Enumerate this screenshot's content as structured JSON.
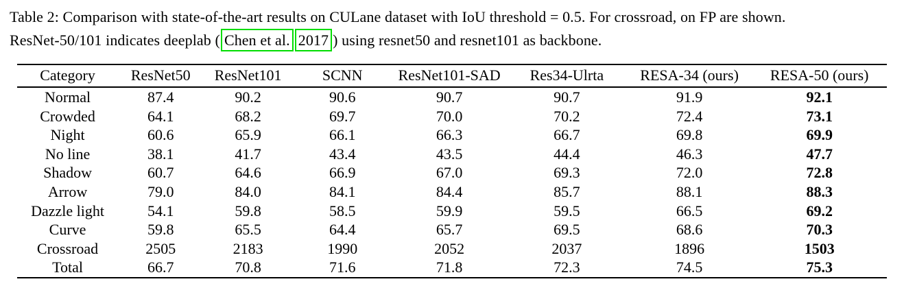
{
  "caption": {
    "line1": "Table 2: Comparison with state-of-the-art results on CULane dataset with IoU threshold = 0.5. For crossroad, on FP are shown.",
    "line2_prefix": "ResNet-50/101 indicates deeplab (",
    "cite_authors": "Chen et al.",
    "cite_year": "2017",
    "line2_suffix": ") using resnet50 and resnet101 as backbone.",
    "citation_box_color": "#00dd00"
  },
  "table": {
    "columns": [
      "Category",
      "ResNet50",
      "ResNet101",
      "SCNN",
      "ResNet101-SAD",
      "Res34-Ulrta",
      "RESA-34 (ours)",
      "RESA-50 (ours)"
    ],
    "rows": [
      [
        "Normal",
        "87.4",
        "90.2",
        "90.6",
        "90.7",
        "90.7",
        "91.9",
        "92.1"
      ],
      [
        "Crowded",
        "64.1",
        "68.2",
        "69.7",
        "70.0",
        "70.2",
        "72.4",
        "73.1"
      ],
      [
        "Night",
        "60.6",
        "65.9",
        "66.1",
        "66.3",
        "66.7",
        "69.8",
        "69.9"
      ],
      [
        "No line",
        "38.1",
        "41.7",
        "43.4",
        "43.5",
        "44.4",
        "46.3",
        "47.7"
      ],
      [
        "Shadow",
        "60.7",
        "64.6",
        "66.9",
        "67.0",
        "69.3",
        "72.0",
        "72.8"
      ],
      [
        "Arrow",
        "79.0",
        "84.0",
        "84.1",
        "84.4",
        "85.7",
        "88.1",
        "88.3"
      ],
      [
        "Dazzle light",
        "54.1",
        "59.8",
        "58.5",
        "59.9",
        "59.5",
        "66.5",
        "69.2"
      ],
      [
        "Curve",
        "59.8",
        "65.5",
        "64.4",
        "65.7",
        "69.5",
        "68.6",
        "70.3"
      ],
      [
        "Crossroad",
        "2505",
        "2183",
        "1990",
        "2052",
        "2037",
        "1896",
        "1503"
      ],
      [
        "Total",
        "66.7",
        "70.8",
        "71.6",
        "71.8",
        "72.3",
        "74.5",
        "75.3"
      ]
    ]
  }
}
